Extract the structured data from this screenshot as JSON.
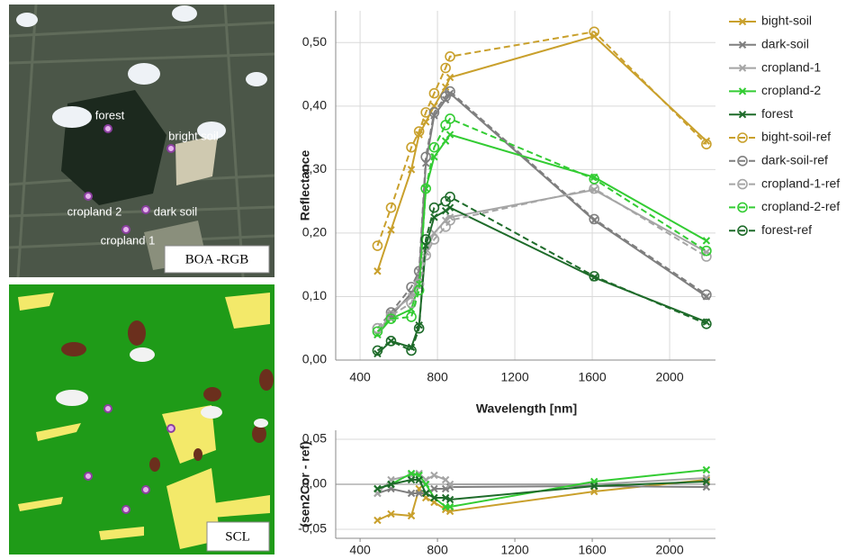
{
  "images": [
    {
      "caption": "BOA -RGB",
      "labels": [
        "forest",
        "bright soil",
        "cropland 2",
        "dark soil",
        "cropland 1"
      ]
    },
    {
      "caption": "SCL"
    }
  ],
  "chart_data": [
    {
      "type": "line",
      "y_label": "Reflectance",
      "x_label": "Wavelength [nm]",
      "grid": true,
      "legend": "outside-right",
      "xlim": [
        274,
        2237
      ],
      "xticks": [
        400,
        800,
        1200,
        1600,
        2000
      ],
      "ylim": [
        0,
        0.55
      ],
      "yticks": [
        {
          "value": 0,
          "label": "0,00"
        },
        {
          "value": 0.1,
          "label": "0,10"
        },
        {
          "value": 0.2,
          "label": "0,20"
        },
        {
          "value": 0.3,
          "label": "0,30"
        },
        {
          "value": 0.4,
          "label": "0,40"
        },
        {
          "value": 0.5,
          "label": "0,50"
        }
      ],
      "x": [
        490,
        560,
        665,
        705,
        740,
        783,
        842,
        865,
        1610,
        2190
      ],
      "series": [
        {
          "name": "bight-soil",
          "color": "#c9a02c",
          "dash": false,
          "marker": "x",
          "values": [
            0.14,
            0.205,
            0.3,
            0.355,
            0.375,
            0.4,
            0.43,
            0.445,
            0.51,
            0.345
          ]
        },
        {
          "name": "dark-soil",
          "color": "#7f7f7f",
          "dash": false,
          "marker": "x",
          "values": [
            0.04,
            0.07,
            0.105,
            0.13,
            0.31,
            0.385,
            0.41,
            0.42,
            0.22,
            0.1
          ]
        },
        {
          "name": "cropland-1",
          "color": "#a5a5a5",
          "dash": false,
          "marker": "x",
          "values": [
            0.04,
            0.075,
            0.1,
            0.14,
            0.17,
            0.2,
            0.22,
            0.225,
            0.268,
            0.17
          ]
        },
        {
          "name": "cropland-2",
          "color": "#33cc33",
          "dash": false,
          "marker": "x",
          "values": [
            0.04,
            0.065,
            0.08,
            0.12,
            0.27,
            0.32,
            0.345,
            0.355,
            0.288,
            0.188
          ]
        },
        {
          "name": "forest",
          "color": "#1e6b2a",
          "dash": false,
          "marker": "x",
          "values": [
            0.01,
            0.03,
            0.02,
            0.055,
            0.18,
            0.225,
            0.235,
            0.24,
            0.13,
            0.06
          ]
        },
        {
          "name": "bight-soil-ref",
          "color": "#c9a02c",
          "dash": true,
          "marker": "o",
          "values": [
            0.18,
            0.24,
            0.335,
            0.36,
            0.39,
            0.42,
            0.46,
            0.478,
            0.517,
            0.34
          ]
        },
        {
          "name": "dark-soil-ref",
          "color": "#7f7f7f",
          "dash": true,
          "marker": "o",
          "values": [
            0.05,
            0.075,
            0.115,
            0.14,
            0.32,
            0.39,
            0.415,
            0.423,
            0.222,
            0.103
          ]
        },
        {
          "name": "cropland-1-ref",
          "color": "#a5a5a5",
          "dash": true,
          "marker": "o",
          "values": [
            0.05,
            0.07,
            0.09,
            0.12,
            0.165,
            0.19,
            0.21,
            0.22,
            0.27,
            0.163
          ]
        },
        {
          "name": "cropland-2-ref",
          "color": "#33cc33",
          "dash": true,
          "marker": "o",
          "values": [
            0.045,
            0.065,
            0.068,
            0.11,
            0.27,
            0.335,
            0.37,
            0.38,
            0.285,
            0.172
          ]
        },
        {
          "name": "forest-ref",
          "color": "#1e6b2a",
          "dash": true,
          "marker": "o",
          "values": [
            0.015,
            0.03,
            0.015,
            0.05,
            0.19,
            0.24,
            0.25,
            0.257,
            0.132,
            0.057
          ]
        }
      ]
    },
    {
      "type": "line",
      "y_label": "(sen2Cor - ref)",
      "grid": true,
      "xlim": [
        274,
        2237
      ],
      "xticks": [
        400,
        800,
        1200,
        1600,
        2000
      ],
      "ylim": [
        -0.06,
        0.06
      ],
      "yticks": [
        {
          "value": -0.05,
          "label": "-0,05"
        },
        {
          "value": 0,
          "label": "0,00"
        },
        {
          "value": 0.05,
          "label": "0,05"
        }
      ],
      "x": [
        490,
        560,
        665,
        705,
        740,
        783,
        842,
        865,
        1610,
        2190
      ],
      "series": [
        {
          "color": "#c9a02c",
          "dash": false,
          "marker": "x",
          "values": [
            -0.04,
            -0.033,
            -0.035,
            -0.005,
            -0.015,
            -0.02,
            -0.028,
            -0.03,
            -0.008,
            0.005
          ]
        },
        {
          "color": "#7f7f7f",
          "dash": false,
          "marker": "x",
          "values": [
            -0.01,
            -0.005,
            -0.01,
            -0.01,
            -0.01,
            -0.005,
            -0.005,
            -0.003,
            -0.002,
            -0.003
          ]
        },
        {
          "color": "#a5a5a5",
          "dash": false,
          "marker": "x",
          "values": [
            -0.01,
            0.005,
            0.01,
            0.012,
            0.005,
            0.01,
            0.005,
            0,
            0,
            0.007
          ]
        },
        {
          "color": "#33cc33",
          "dash": false,
          "marker": "x",
          "values": [
            -0.005,
            0,
            0.012,
            0.01,
            0,
            -0.015,
            -0.025,
            -0.025,
            0.003,
            0.016
          ]
        },
        {
          "color": "#1e6b2a",
          "dash": false,
          "marker": "x",
          "values": [
            -0.005,
            0,
            0.005,
            0.005,
            -0.01,
            -0.015,
            -0.015,
            -0.017,
            -0.002,
            0.003
          ]
        }
      ]
    }
  ]
}
